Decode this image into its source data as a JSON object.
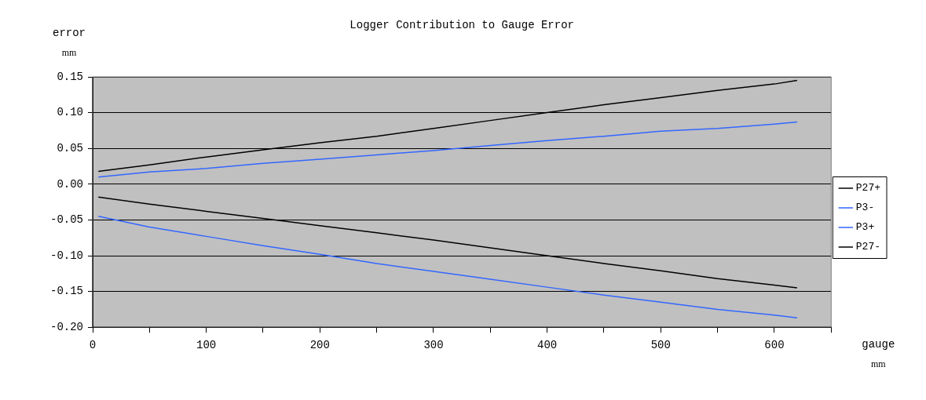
{
  "chart_data": {
    "type": "line",
    "title": "Logger Contribution to Gauge Error",
    "xlabel": "gauge\nmm",
    "ylabel": "error\nmm",
    "x": [
      5,
      50,
      100,
      150,
      200,
      250,
      300,
      350,
      400,
      450,
      500,
      550,
      600,
      620
    ],
    "series": [
      {
        "name": "P27+",
        "color": "#000000",
        "values": [
          0.018,
          0.027,
          0.038,
          0.048,
          0.058,
          0.067,
          0.078,
          0.089,
          0.1,
          0.111,
          0.121,
          0.131,
          0.14,
          0.145
        ]
      },
      {
        "name": "P3-",
        "color": "#3366ff",
        "values": [
          0.01,
          0.017,
          0.022,
          0.029,
          0.035,
          0.041,
          0.047,
          0.054,
          0.061,
          0.067,
          0.074,
          0.078,
          0.084,
          0.087
        ]
      },
      {
        "name": "P3+",
        "color": "#3366ff",
        "values": [
          -0.045,
          -0.06,
          -0.073,
          -0.086,
          -0.098,
          -0.111,
          -0.122,
          -0.133,
          -0.144,
          -0.155,
          -0.165,
          -0.175,
          -0.183,
          -0.187
        ]
      },
      {
        "name": "P27-",
        "color": "#000000",
        "values": [
          -0.018,
          -0.028,
          -0.038,
          -0.048,
          -0.058,
          -0.068,
          -0.078,
          -0.089,
          -0.1,
          -0.111,
          -0.121,
          -0.132,
          -0.141,
          -0.145
        ]
      }
    ],
    "xlim": [
      0,
      650
    ],
    "xticks": [
      0,
      {
        "value": 50,
        "label": null
      },
      100,
      {
        "value": 150,
        "label": null
      },
      200,
      {
        "value": 250,
        "label": null
      },
      300,
      {
        "value": 350,
        "label": null
      },
      400,
      {
        "value": 450,
        "label": null
      },
      500,
      {
        "value": 550,
        "label": null
      },
      600,
      {
        "value": 650,
        "label": null
      }
    ],
    "ylim": [
      -0.2,
      0.15
    ],
    "yticks": [
      {
        "value": -0.2,
        "label": "-0.20"
      },
      {
        "value": -0.15,
        "label": "-0.15"
      },
      {
        "value": -0.1,
        "label": "-0.10"
      },
      {
        "value": -0.05,
        "label": "-0.05"
      },
      {
        "value": 0,
        "label": "0.00"
      },
      {
        "value": 0.05,
        "label": "0.05"
      },
      {
        "value": 0.1,
        "label": "0.10"
      },
      {
        "value": 0.15,
        "label": "0.15"
      }
    ],
    "grid": "y",
    "legend": "right",
    "marker": "none",
    "line_style": "solid"
  }
}
